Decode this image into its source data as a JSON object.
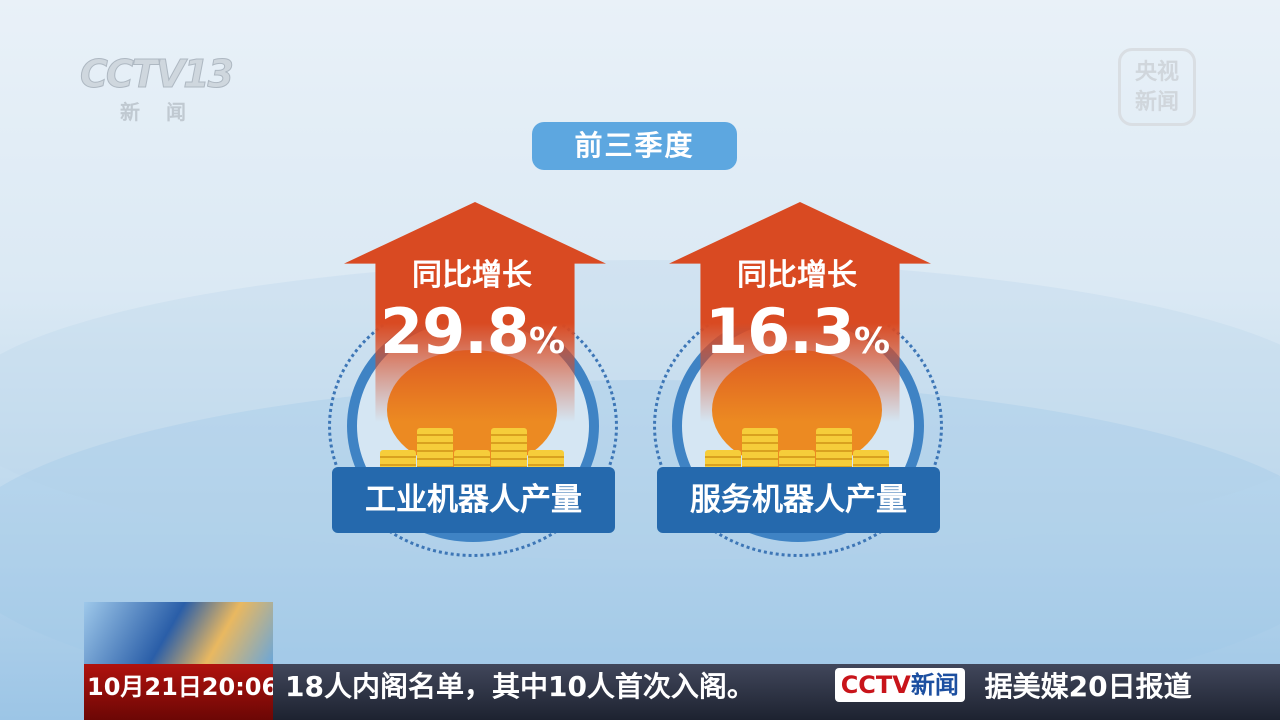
{
  "channel_logo": {
    "text": "CCTV13",
    "sub": "新闻"
  },
  "corner_logo": {
    "line1": "央视",
    "line2": "新闻"
  },
  "period": "前三季度",
  "cards": [
    {
      "label": "同比增长",
      "value": "29.8",
      "unit": "%",
      "title": "工业机器人产量"
    },
    {
      "label": "同比增长",
      "value": "16.3",
      "unit": "%",
      "title": "服务机器人产量"
    }
  ],
  "ticker": {
    "date": "10月21日",
    "time": "20:06",
    "text1": "18人内阁名单，其中10人首次入阁。",
    "logo": "CCTV",
    "logo_sub": "新闻",
    "text2": "据美媒20日报道"
  },
  "colors": {
    "arrow": "#d94a22",
    "label_bg": "#2569ad",
    "pill": "#5da7e0"
  }
}
